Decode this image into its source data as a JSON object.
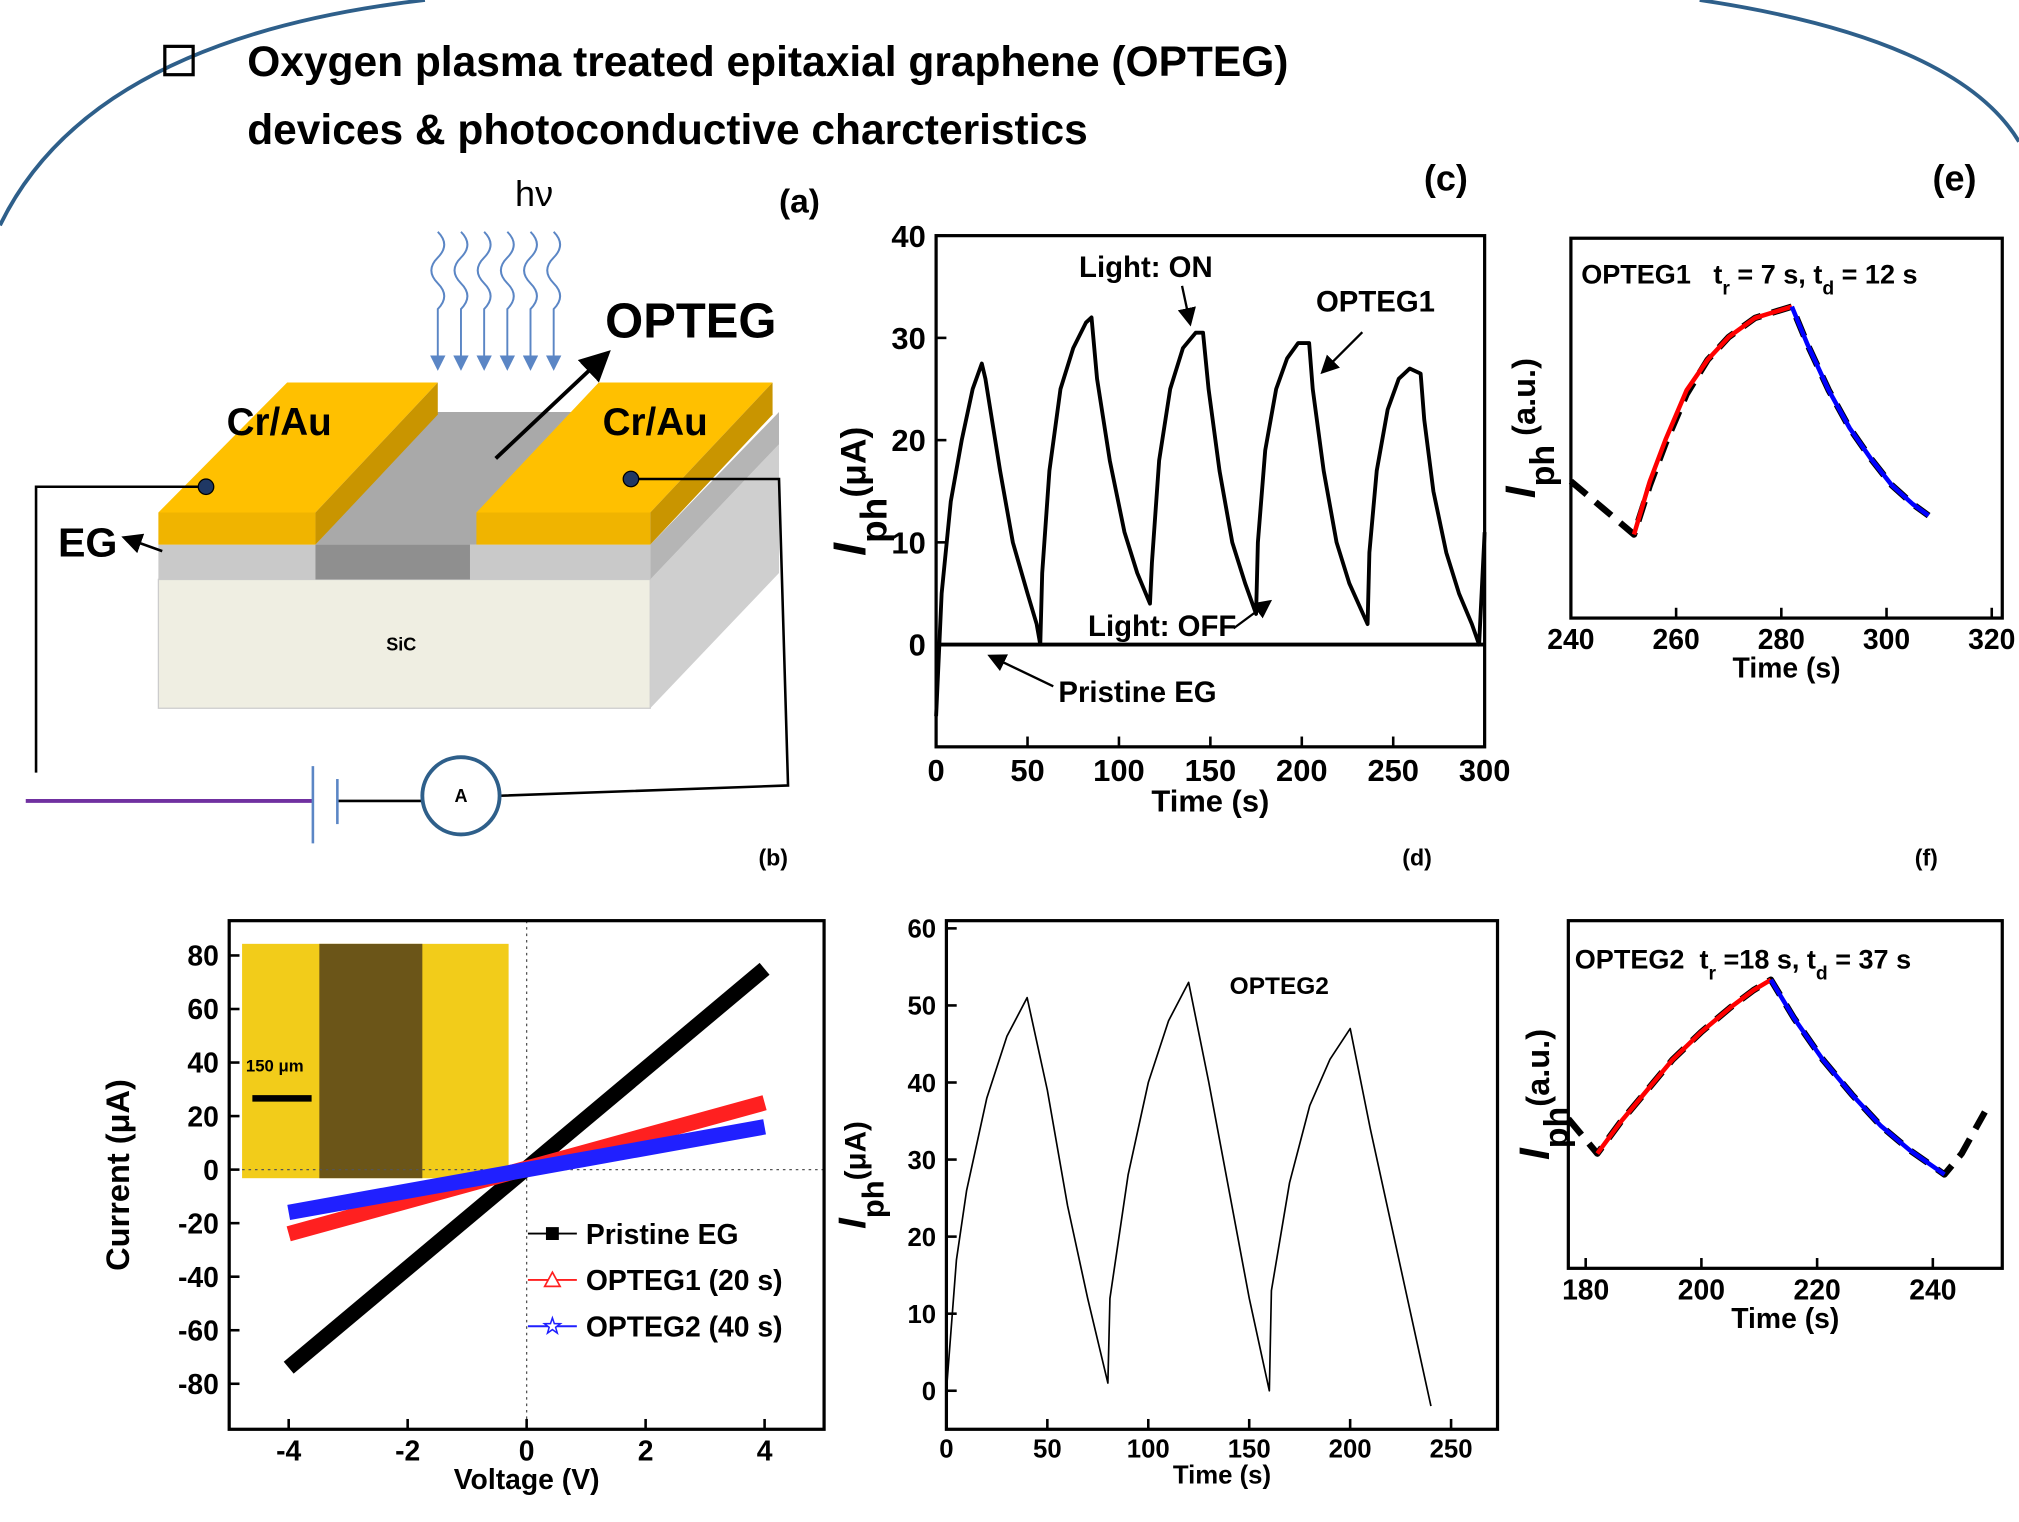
{
  "title": [
    "Oxygen plasma treated epitaxial graphene (OPTEG)",
    "devices & photoconductive charcteristics"
  ],
  "diagram": {
    "panel_label": "(a)",
    "light": "hν",
    "channel": "OPTEG",
    "electrodes": [
      "Cr/Au",
      "Cr/Au"
    ],
    "layer": "EG",
    "substrate": "SiC",
    "meter": "A"
  },
  "chart_data": [
    {
      "type": "line",
      "panel_label": "(c)",
      "xlabel": "Time (s)",
      "ylabel": [
        "I",
        "ph",
        "(μA)"
      ],
      "xlim": [
        0,
        300
      ],
      "ylim": [
        -10,
        40
      ],
      "xticks": [
        0,
        50,
        100,
        150,
        200,
        250,
        300
      ],
      "yticks": [
        0,
        10,
        20,
        30,
        40
      ],
      "annotations": [
        "Light: ON",
        "Light: OFF"
      ],
      "series": [
        {
          "name": "OPTEG1",
          "color": "#000000",
          "x": [
            0,
            3,
            8,
            14,
            20,
            25,
            27,
            35,
            42,
            50,
            55,
            57,
            58,
            62,
            68,
            75,
            82,
            85,
            88,
            95,
            103,
            110,
            117,
            118,
            122,
            128,
            135,
            142,
            146,
            149,
            155,
            162,
            169,
            175,
            176,
            180,
            186,
            192,
            198,
            204,
            206,
            212,
            219,
            226,
            236,
            237,
            241,
            247,
            253,
            259,
            265,
            267,
            272,
            279,
            286,
            293,
            297,
            300
          ],
          "values": [
            -7,
            5,
            14,
            20,
            25,
            27.5,
            26,
            17,
            10,
            5,
            2,
            0,
            7,
            17,
            25,
            29,
            31.5,
            32,
            26,
            18,
            11,
            7,
            4,
            8,
            18,
            25,
            29,
            30.5,
            30.5,
            25,
            17,
            10,
            6,
            3,
            10,
            19,
            25,
            28,
            29.5,
            29.5,
            25,
            17,
            10,
            6,
            2,
            9,
            17,
            23,
            26,
            27,
            26.5,
            22,
            15,
            9,
            5,
            2,
            0,
            11
          ]
        },
        {
          "name": "Pristine EG",
          "color": "#000000",
          "x": [
            0,
            300
          ],
          "values": [
            0,
            0
          ]
        }
      ]
    },
    {
      "type": "line",
      "panel_label": "(e)",
      "xlabel": "Time (s)",
      "ylabel": [
        "I",
        "ph",
        " (a.u.)"
      ],
      "xlim": [
        240,
        322
      ],
      "ylim": [
        0,
        1
      ],
      "xticks": [
        240,
        260,
        280,
        300,
        320
      ],
      "annotation": [
        "OPTEG1   ",
        "t",
        "r",
        " = 7 s, t",
        "d",
        " = 12 s"
      ],
      "series": [
        {
          "color": "#000000",
          "style": "dashed",
          "x": [
            240,
            246,
            252,
            255,
            258,
            262,
            266,
            270,
            275,
            282,
            285,
            289,
            293,
            297,
            301,
            305,
            308
          ],
          "values": [
            0.36,
            0.29,
            0.22,
            0.35,
            0.46,
            0.59,
            0.68,
            0.74,
            0.79,
            0.82,
            0.72,
            0.6,
            0.5,
            0.42,
            0.35,
            0.3,
            0.27
          ]
        },
        {
          "color": "#ff0000",
          "x": [
            252,
            255,
            258,
            262,
            266,
            270,
            275,
            282
          ],
          "values": [
            0.22,
            0.36,
            0.47,
            0.6,
            0.68,
            0.74,
            0.79,
            0.82
          ]
        },
        {
          "color": "#0000ff",
          "x": [
            282,
            285,
            289,
            293,
            297,
            301,
            305,
            308
          ],
          "values": [
            0.82,
            0.72,
            0.6,
            0.5,
            0.42,
            0.35,
            0.3,
            0.27
          ]
        }
      ]
    },
    {
      "type": "line",
      "panel_label": "(b)",
      "xlabel": "Voltage (V)",
      "ylabel": [
        "Current (μA)"
      ],
      "xlim": [
        -5,
        5
      ],
      "ylim": [
        -97,
        93
      ],
      "xticks": [
        -4,
        -2,
        0,
        2,
        4
      ],
      "yticks": [
        -80,
        -60,
        -40,
        -20,
        0,
        20,
        40,
        60,
        80
      ],
      "zero_lines": true,
      "legend": "lower right",
      "inset_label": "150 μm",
      "series": [
        {
          "name": "Pristine EG",
          "color": "#000000",
          "marker": "square",
          "x": [
            -4,
            4
          ],
          "values": [
            -74,
            75
          ]
        },
        {
          "name": "OPTEG1 (20 s)",
          "color": "#ff2020",
          "marker": "triangle",
          "x": [
            -4,
            4
          ],
          "values": [
            -24,
            25
          ]
        },
        {
          "name": "OPTEG2 (40 s)",
          "color": "#2020ff",
          "marker": "star",
          "x": [
            -4,
            4
          ],
          "values": [
            -16,
            16
          ]
        }
      ]
    },
    {
      "type": "line",
      "panel_label": "(d)",
      "xlabel": "Time (s)",
      "ylabel": [
        "I",
        "ph",
        "(μA)"
      ],
      "xlim": [
        0,
        273
      ],
      "ylim": [
        -5,
        61
      ],
      "xticks": [
        0,
        50,
        100,
        150,
        200,
        250
      ],
      "yticks": [
        0,
        10,
        20,
        30,
        40,
        50,
        60
      ],
      "series": [
        {
          "name": "OPTEG2",
          "color": "#000000",
          "x": [
            0,
            5,
            10,
            20,
            30,
            40,
            50,
            60,
            70,
            80,
            81,
            90,
            100,
            110,
            120,
            130,
            140,
            150,
            160,
            161,
            170,
            180,
            190,
            200,
            210,
            220,
            230,
            240
          ],
          "values": [
            0,
            17,
            26,
            38,
            46,
            51,
            39,
            24,
            12,
            1,
            12,
            28,
            40,
            48,
            53,
            40,
            26,
            12,
            0,
            13,
            27,
            37,
            43,
            47,
            34,
            22,
            10,
            -2
          ]
        }
      ]
    },
    {
      "type": "line",
      "panel_label": "(f)",
      "xlabel": "Time (s)",
      "ylabel": [
        "I",
        "ph",
        "(a.u.)"
      ],
      "xlim": [
        177,
        252
      ],
      "ylim": [
        0,
        1
      ],
      "xticks": [
        180,
        200,
        220,
        240
      ],
      "annotation": [
        "OPTEG2  ",
        "t",
        "r",
        " =18 s, t",
        "d",
        " = 37 s"
      ],
      "series": [
        {
          "color": "#000000",
          "style": "dashed",
          "x": [
            177,
            180,
            182,
            186,
            190,
            195,
            200,
            205,
            209,
            212,
            216,
            221,
            226,
            231,
            236,
            242,
            245,
            249
          ],
          "values": [
            0.43,
            0.37,
            0.33,
            0.42,
            0.5,
            0.6,
            0.68,
            0.75,
            0.8,
            0.83,
            0.72,
            0.6,
            0.5,
            0.41,
            0.34,
            0.27,
            0.33,
            0.45
          ]
        },
        {
          "color": "#ff0000",
          "x": [
            182,
            186,
            190,
            195,
            200,
            205,
            209,
            212
          ],
          "values": [
            0.33,
            0.42,
            0.5,
            0.6,
            0.68,
            0.75,
            0.8,
            0.83
          ]
        },
        {
          "color": "#0000ff",
          "x": [
            212,
            216,
            221,
            226,
            231,
            236,
            242
          ],
          "values": [
            0.83,
            0.72,
            0.6,
            0.5,
            0.41,
            0.34,
            0.27
          ]
        }
      ]
    }
  ]
}
